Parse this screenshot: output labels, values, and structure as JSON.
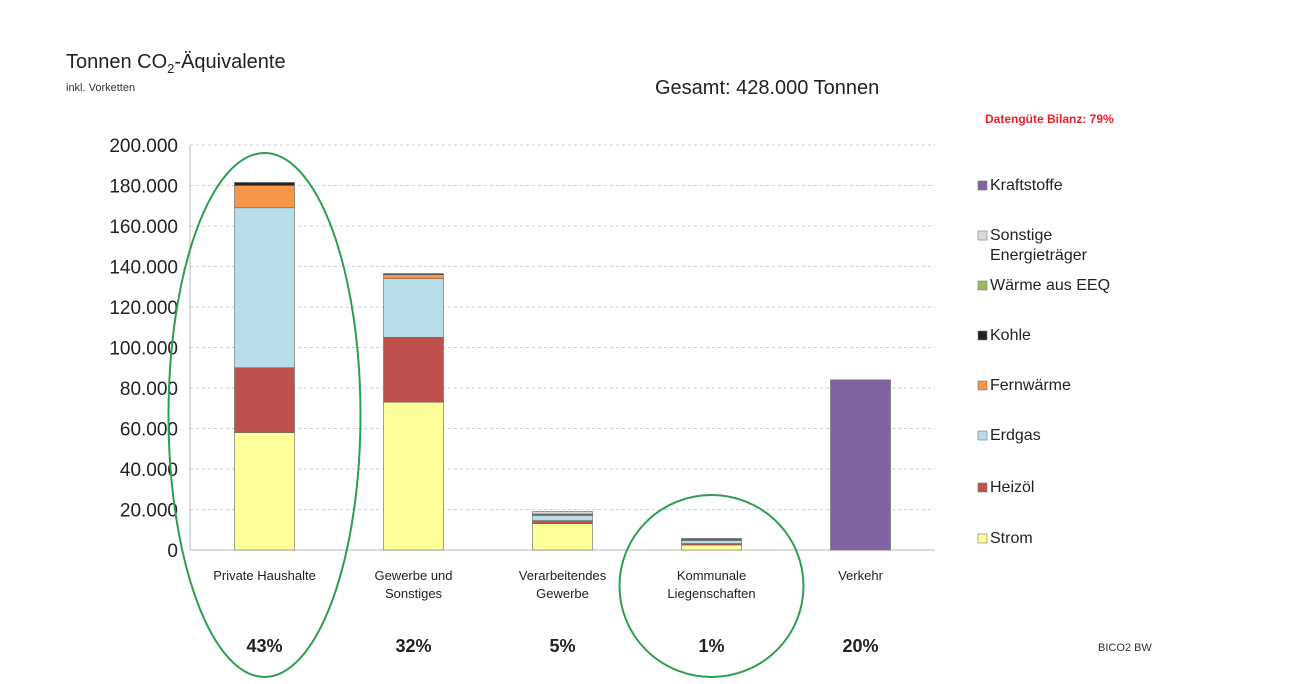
{
  "chart_data": {
    "type": "bar",
    "stacked": true,
    "title": "Tonnen CO",
    "title_subscript": "2",
    "title_rest": "-Äquivalente",
    "subtitle": "inkl. Vorketten",
    "total_label": "Gesamt:  428.000 Tonnen",
    "quality_label": "Datengüte Bilanz: 79%",
    "source_label": "BICO2 BW",
    "ylim": [
      0,
      200000
    ],
    "ytick_labels": [
      "0",
      "20.000",
      "40.000",
      "60.000",
      "80.000",
      "100.000",
      "120.000",
      "140.000",
      "160.000",
      "180.000",
      "200.000"
    ],
    "grid": true,
    "legend_position": "right",
    "categories": [
      {
        "lines": [
          "Private Haushalte"
        ],
        "percent": "43%"
      },
      {
        "lines": [
          "Gewerbe und",
          "Sonstiges"
        ],
        "percent": "32%"
      },
      {
        "lines": [
          "Verarbeitendes",
          "Gewerbe"
        ],
        "percent": "5%"
      },
      {
        "lines": [
          "Kommunale",
          "Liegenschaften"
        ],
        "percent": "1%"
      },
      {
        "lines": [
          "Verkehr"
        ],
        "percent": "20%"
      }
    ],
    "series": [
      {
        "name": "Strom",
        "color": "#ffff99",
        "values": [
          58000,
          73000,
          13000,
          2500,
          0
        ]
      },
      {
        "name": "Heizöl",
        "color": "#c0504d",
        "values": [
          32000,
          32000,
          1500,
          700,
          0
        ]
      },
      {
        "name": "Erdgas",
        "color": "#b7dde8",
        "values": [
          79000,
          29000,
          2500,
          1500,
          0
        ]
      },
      {
        "name": "Fernwärme",
        "color": "#f79646",
        "values": [
          11000,
          2000,
          500,
          300,
          0
        ]
      },
      {
        "name": "Kohle",
        "color": "#222222",
        "values": [
          1500,
          500,
          300,
          200,
          0
        ]
      },
      {
        "name": "Wärme aus EEQ",
        "color": "#9bbb59",
        "values": [
          0,
          0,
          0,
          300,
          0
        ]
      },
      {
        "name": "Sonstige Energieträger",
        "color": "#d9d9d9",
        "values": [
          0,
          0,
          1200,
          200,
          0
        ]
      },
      {
        "name": "Kraftstoffe",
        "color": "#8064a2",
        "values": [
          0,
          0,
          0,
          0,
          84000
        ]
      }
    ],
    "legend": [
      {
        "lines": [
          "Kraftstoffe"
        ],
        "color": "#8064a2"
      },
      {
        "lines": [
          "Sonstige",
          "Energieträger"
        ],
        "color": "#d9d9d9"
      },
      {
        "lines": [
          "Wärme aus EEQ"
        ],
        "color": "#9bbb59"
      },
      {
        "lines": [
          "Kohle"
        ],
        "color": "#222222"
      },
      {
        "lines": [
          "Fernwärme"
        ],
        "color": "#f79646"
      },
      {
        "lines": [
          "Erdgas"
        ],
        "color": "#b7dde8"
      },
      {
        "lines": [
          "Heizöl"
        ],
        "color": "#c0504d"
      },
      {
        "lines": [
          "Strom"
        ],
        "color": "#ffff99"
      }
    ],
    "highlight_color": "#2e9e4f",
    "highlighted_categories": [
      "Private Haushalte",
      "Kommunale Liegenschaften"
    ]
  }
}
